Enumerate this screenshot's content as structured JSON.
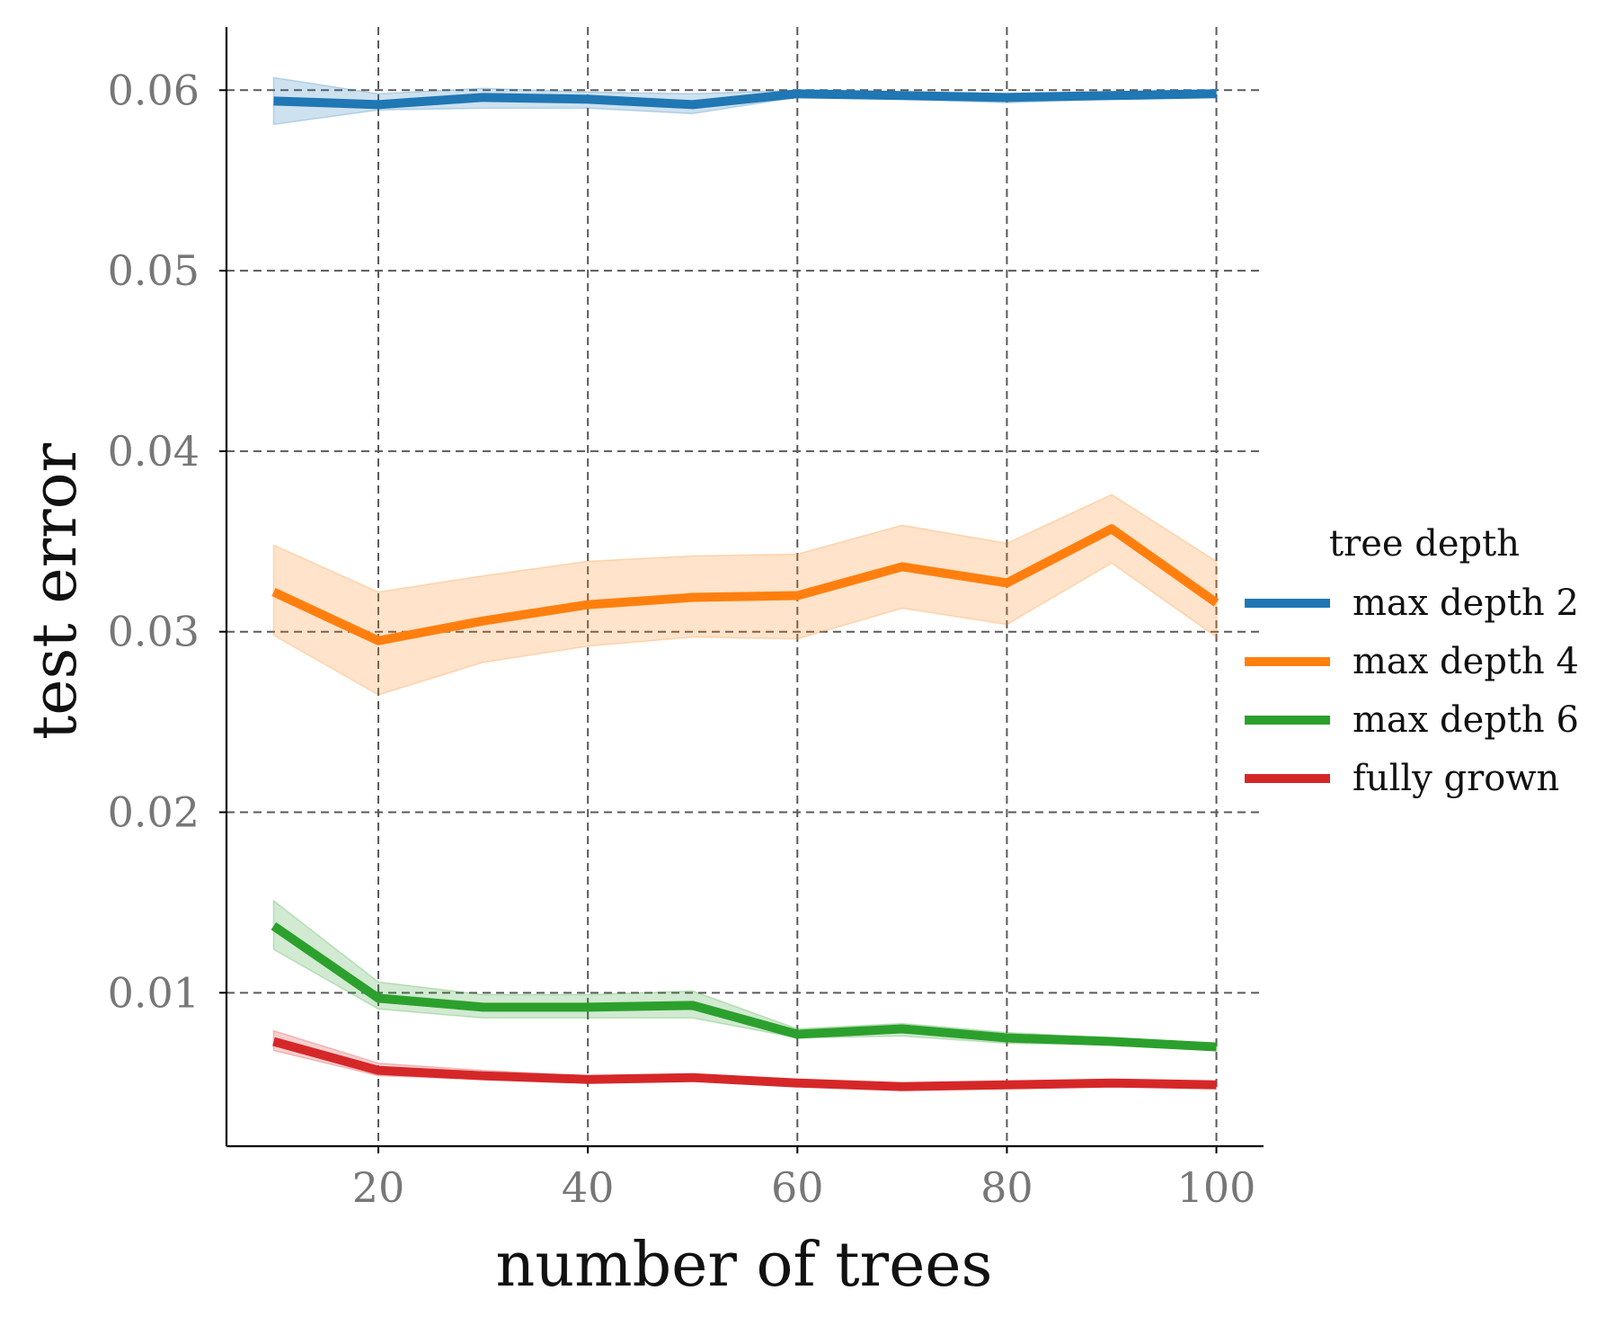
{
  "chart_data": {
    "type": "line",
    "xlabel": "number of trees",
    "ylabel": "test error",
    "xlim": [
      5.5,
      104.5
    ],
    "ylim": [
      0.0015,
      0.0635
    ],
    "xticks": [
      20,
      40,
      60,
      80,
      100
    ],
    "xtick_labels": [
      "20",
      "40",
      "60",
      "80",
      "100"
    ],
    "yticks": [
      0.01,
      0.02,
      0.03,
      0.04,
      0.05,
      0.06
    ],
    "ytick_labels": [
      "0.01",
      "0.02",
      "0.03",
      "0.04",
      "0.05",
      "0.06"
    ],
    "grid": true,
    "legend": {
      "title": "tree depth",
      "placement": "right"
    },
    "x": [
      10,
      20,
      30,
      40,
      50,
      60,
      70,
      80,
      90,
      100
    ],
    "series": [
      {
        "name": "max depth 2",
        "color": "#1f77b4",
        "values": [
          0.0594,
          0.0592,
          0.0596,
          0.0595,
          0.0592,
          0.0598,
          0.0597,
          0.0596,
          0.0597,
          0.0598
        ],
        "lower": [
          0.0581,
          0.0589,
          0.059,
          0.059,
          0.0587,
          0.0596,
          0.0595,
          0.0593,
          0.0595,
          0.0596
        ],
        "upper": [
          0.0607,
          0.0598,
          0.0601,
          0.0599,
          0.0598,
          0.06,
          0.0599,
          0.0598,
          0.0599,
          0.06
        ]
      },
      {
        "name": "max depth 4",
        "color": "#ff7f0e",
        "values": [
          0.0322,
          0.0295,
          0.0306,
          0.0315,
          0.0319,
          0.032,
          0.0336,
          0.0327,
          0.0357,
          0.0316
        ],
        "lower": [
          0.0298,
          0.0265,
          0.0283,
          0.0292,
          0.0297,
          0.0296,
          0.0313,
          0.0304,
          0.0338,
          0.0297
        ],
        "upper": [
          0.0348,
          0.0322,
          0.0331,
          0.0339,
          0.0342,
          0.0343,
          0.0359,
          0.0349,
          0.0376,
          0.0339
        ]
      },
      {
        "name": "max depth 6",
        "color": "#2ca02c",
        "values": [
          0.0137,
          0.0097,
          0.0092,
          0.0092,
          0.0093,
          0.0077,
          0.008,
          0.0075,
          0.0073,
          0.007
        ],
        "lower": [
          0.0124,
          0.0091,
          0.0086,
          0.0086,
          0.0086,
          0.0075,
          0.0076,
          0.0072,
          0.0071,
          0.0068
        ],
        "upper": [
          0.0151,
          0.0106,
          0.0099,
          0.0099,
          0.0101,
          0.008,
          0.0083,
          0.0078,
          0.0075,
          0.0072
        ]
      },
      {
        "name": "fully grown",
        "color": "#d62728",
        "values": [
          0.0073,
          0.0057,
          0.0054,
          0.0052,
          0.0053,
          0.005,
          0.0048,
          0.0049,
          0.005,
          0.0049
        ],
        "lower": [
          0.0068,
          0.0054,
          0.0052,
          0.005,
          0.0051,
          0.0049,
          0.0047,
          0.0048,
          0.0049,
          0.0048
        ],
        "upper": [
          0.0079,
          0.0061,
          0.0057,
          0.0054,
          0.0055,
          0.0052,
          0.0049,
          0.005,
          0.0051,
          0.005
        ]
      }
    ]
  }
}
